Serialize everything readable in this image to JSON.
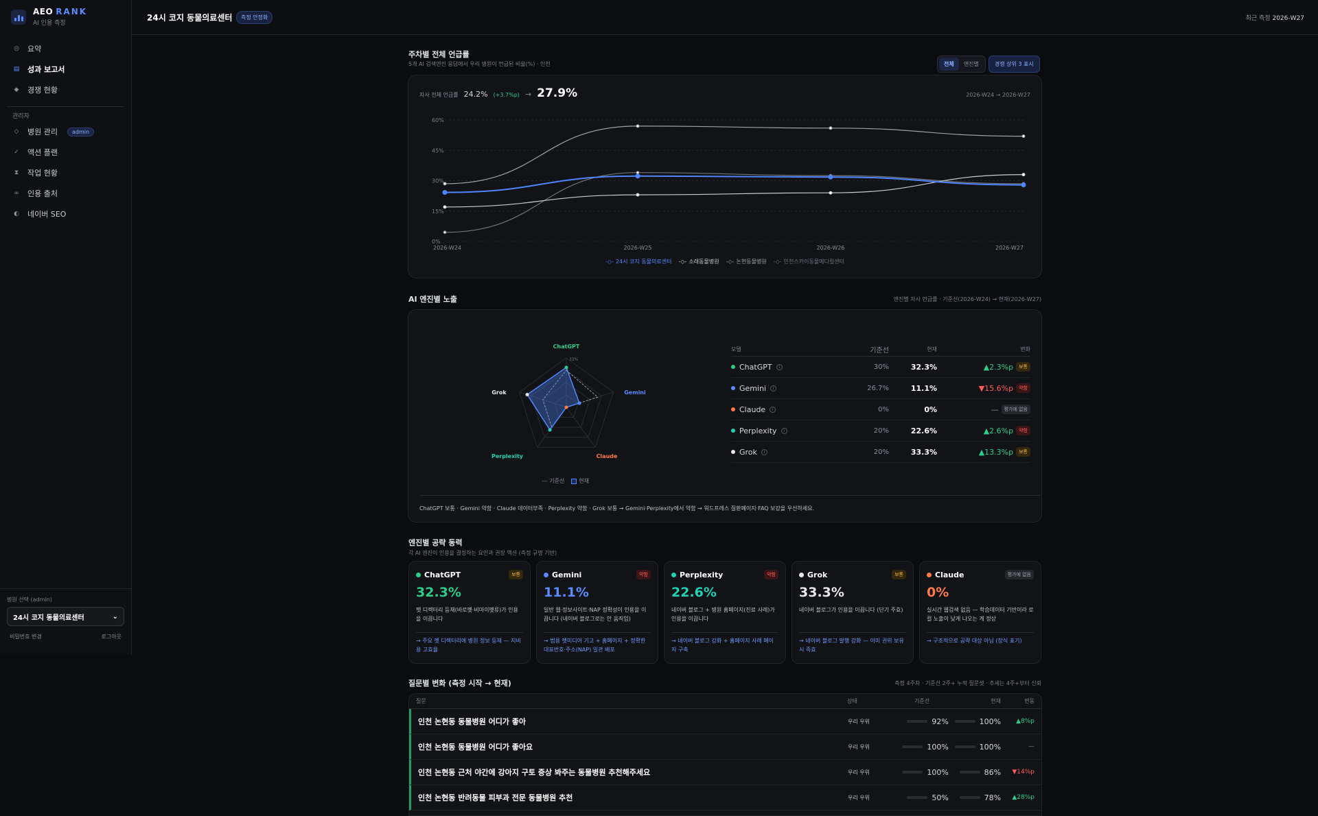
{
  "brand": {
    "name": "AEO",
    "name_accent": "RANK",
    "sub": "AI 인용 측정"
  },
  "nav": {
    "items": [
      {
        "label": "요약",
        "icon": "circle-dot-icon"
      },
      {
        "label": "성과 보고서",
        "icon": "report-icon"
      },
      {
        "label": "경쟁 현황",
        "icon": "diamond-icon"
      }
    ],
    "admin_section": "관리자",
    "admin_items": [
      {
        "label": "병원 관리",
        "badge": "admin"
      },
      {
        "label": "액션 플랜"
      },
      {
        "label": "작업 현황"
      },
      {
        "label": "인용 출처"
      },
      {
        "label": "네이버 SEO"
      }
    ]
  },
  "sidebar_bottom": {
    "label": "병원 선택 (admin)",
    "selected": "24시 코지 동물의료센터",
    "change_password": "비밀번호 변경",
    "logout": "로그아웃"
  },
  "header": {
    "title": "24시 코지 동물의료센터",
    "status": "측정 안정화",
    "last_label": "최근 측정",
    "last_value": "2026-W27"
  },
  "weekly": {
    "title": "주차별 전체 언급률",
    "sub": "5개 AI 검색엔진 응답에서 우리 병원이 언급된 비율(%) · 인천",
    "seg": [
      "전체",
      "엔진별"
    ],
    "extra": "경쟁 상위 3 표시",
    "kpi_label": "자사 전체 언급률",
    "kpi_from": "24.2%",
    "kpi_delta": "(+3.7%p)",
    "kpi_arrow": "→",
    "kpi_to": "27.9%",
    "range": "2026-W24 → 2026-W27",
    "y_ticks": [
      "60%",
      "45%",
      "30%",
      "15%",
      "0%"
    ]
  },
  "chart_data": {
    "type": "line",
    "x": [
      "2026-W24",
      "2026-W25",
      "2026-W26",
      "2026-W27"
    ],
    "ylim": [
      0,
      60
    ],
    "series": [
      {
        "name": "24시 코지 동물의료센터",
        "values": [
          24.2,
          32.3,
          31.8,
          27.9
        ],
        "color": "#4f86ff"
      },
      {
        "name": "소래동물병원",
        "values": [
          17,
          23,
          24,
          33
        ],
        "color": "#c9ccd3"
      },
      {
        "name": "논현동물병원",
        "values": [
          28.5,
          57,
          56,
          52
        ],
        "color": "#9da1aa"
      },
      {
        "name": "인천스카이동물메디컬센터",
        "values": [
          4.5,
          34,
          32.5,
          28.5
        ],
        "color": "#6f737c"
      }
    ]
  },
  "engines": {
    "title": "AI 엔진별 노출",
    "sub": "엔진별 자사 언급률 · 기준선(2026-W24) → 현재(2026-W27)",
    "radar_labels": [
      "ChatGPT",
      "Gemini",
      "Claude",
      "Perplexity",
      "Grok"
    ],
    "radar_tick": "33%",
    "radar_legend_base": "기준선",
    "radar_legend_cur": "현재",
    "radar_base": [
      30,
      26.7,
      0,
      20,
      20
    ],
    "radar_cur": [
      32.3,
      11.1,
      0,
      22.6,
      33.3
    ],
    "table_headers": {
      "model": "모델",
      "base": "기준선",
      "cur": "현재",
      "chg": "변화"
    },
    "rows": [
      {
        "name": "ChatGPT",
        "color": "#2ecc8a",
        "base": "30%",
        "cur": "32.3%",
        "chg": "▲2.3%p",
        "dir": "up",
        "tag": "보통",
        "tag_type": "normal"
      },
      {
        "name": "Gemini",
        "color": "#5b8cff",
        "base": "26.7%",
        "cur": "11.1%",
        "chg": "▼15.6%p",
        "dir": "down",
        "tag": "약함",
        "tag_type": "weak"
      },
      {
        "name": "Claude",
        "color": "#ff7a45",
        "base": "0%",
        "cur": "0%",
        "chg": "—",
        "dir": "flat",
        "tag": "평가에 없음",
        "tag_type": "nodata"
      },
      {
        "name": "Perplexity",
        "color": "#1fd1b5",
        "base": "20%",
        "cur": "22.6%",
        "chg": "▲2.6%p",
        "dir": "up",
        "tag": "약함",
        "tag_type": "weak"
      },
      {
        "name": "Grok",
        "color": "#e8e8e8",
        "base": "20%",
        "cur": "33.3%",
        "chg": "▲13.3%p",
        "dir": "up",
        "tag": "보통",
        "tag_type": "normal"
      }
    ],
    "summary": "ChatGPT 보통 · Gemini 약함 · Claude 데이터부족 · Perplexity 약함 · Grok 보통 → Gemini·Perplexity에서 약함 → 워드프레스 질환페이지·FAQ 보강을 우선하세요."
  },
  "drivers": {
    "title": "엔진별 공략 동력",
    "sub": "각 AI 엔진이 인용을 결정하는 요인과 권장 액션 (측정 규명 기반)",
    "cards": [
      {
        "name": "ChatGPT",
        "color": "#2ecc8a",
        "tag": "보통",
        "tag_type": "normal",
        "value": "32.3%",
        "desc": "펫 디렉터리 등재(바로펫·비마이펫류)가 인용을 이끕니다",
        "action": "→ 주요 펫 디렉터리에 병원 정보 등재 — 지비용 고효율"
      },
      {
        "name": "Gemini",
        "color": "#5b8cff",
        "tag": "약함",
        "tag_type": "weak",
        "value": "11.1%",
        "desc": "일반 웹·정보사이트·NAP 정확성이 인용을 이끕니다 (네이버 블로그로는 안 움직임)",
        "action": "→ 범용 펫미디어 기고 + 홈페이지 + 정확한 대표번호·주소(NAP) 일관 배포"
      },
      {
        "name": "Perplexity",
        "color": "#1fd1b5",
        "tag": "약함",
        "tag_type": "weak",
        "value": "22.6%",
        "desc": "네이버 블로그 + 병원 홈페이지(진료 사례)가 인용을 이끕니다",
        "action": "→ 네이버 블로그 강화 + 홈페이지 사례 페이지 구축"
      },
      {
        "name": "Grok",
        "color": "#e8e8e8",
        "tag": "보통",
        "tag_type": "normal",
        "value": "33.3%",
        "desc": "네이버 블로그가 인용을 이끕니다 (단기 주효)",
        "action": "→ 네이버 블로그 발행 강화 — 이미 권위 보유 시 즉효"
      },
      {
        "name": "Claude",
        "color": "#ff7a45",
        "tag": "평가에 없음",
        "tag_type": "nodata",
        "value": "0%",
        "desc": "실시간 웹검색 없음 — 학습데이터 기반이라 로컬 노출이 낮게 나오는 게 정상",
        "action": "→ 구조적으로 공략 대상 아님 (장식 표기)"
      }
    ]
  },
  "questions": {
    "title": "질문별 변화 (측정 시작 → 현재)",
    "sub": "측정 4주차 · 기준선 2주+ 누적 질문셋 · 추세는 4주+부터 신뢰",
    "headers": {
      "q": "질문",
      "state": "상태",
      "base": "기준선",
      "cur": "현재",
      "chg": "변동"
    },
    "rows": [
      {
        "q": "인천 논현동 동물병원 어디가 좋아",
        "state": "우리 우위",
        "base": "92%",
        "base_v": 0.92,
        "cur": "100%",
        "cur_v": 1.0,
        "chg": "▲8%p",
        "dir": "up"
      },
      {
        "q": "인천 논현동 동물병원 어디가 좋아요",
        "state": "우리 우위",
        "base": "100%",
        "base_v": 1.0,
        "cur": "100%",
        "cur_v": 1.0,
        "chg": "—",
        "dir": "flat"
      },
      {
        "q": "인천 논현동 근처 야간에 강아지 구토 증상 봐주는 동물병원 추천해주세요",
        "state": "우리 우위",
        "base": "100%",
        "base_v": 1.0,
        "cur": "86%",
        "cur_v": 0.86,
        "chg": "▼14%p",
        "dir": "down"
      },
      {
        "q": "인천 논현동 반려동물 피부과 전문 동물병원 추천",
        "state": "우리 우위",
        "base": "50%",
        "base_v": 0.5,
        "cur": "78%",
        "cur_v": 0.78,
        "chg": "▲28%p",
        "dir": "up"
      }
    ]
  }
}
